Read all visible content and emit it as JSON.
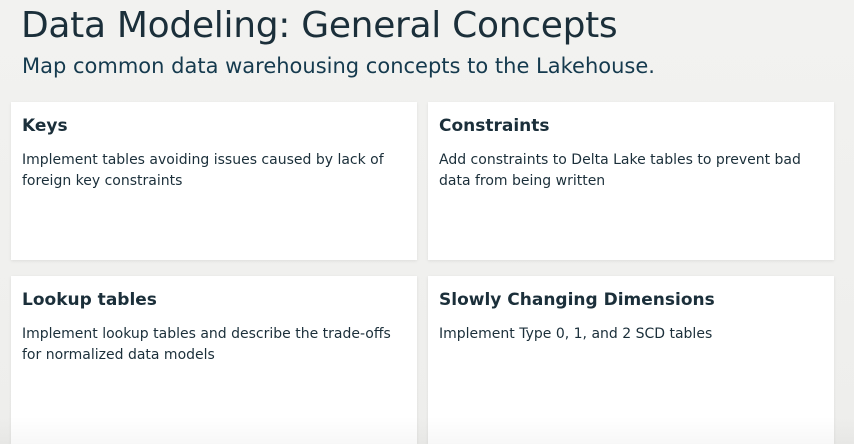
{
  "slide": {
    "title": "Data Modeling: General Concepts",
    "subtitle": "Map common data warehousing concepts to the Lakehouse."
  },
  "cards": [
    {
      "title": "Keys",
      "description": "Implement tables avoiding issues caused by lack of foreign key constraints"
    },
    {
      "title": "Constraints",
      "description": "Add constraints to Delta Lake tables to prevent bad data from being written"
    },
    {
      "title": "Lookup tables",
      "description": "Implement lookup tables and describe the trade-offs for normalized data models"
    },
    {
      "title": "Slowly Changing Dimensions",
      "description": "Implement Type 0, 1, and 2 SCD tables"
    }
  ],
  "colors": {
    "background": "#efefed",
    "card_background": "#ffffff",
    "text_primary": "#1b2f3a",
    "text_subtitle": "#153a4e"
  }
}
